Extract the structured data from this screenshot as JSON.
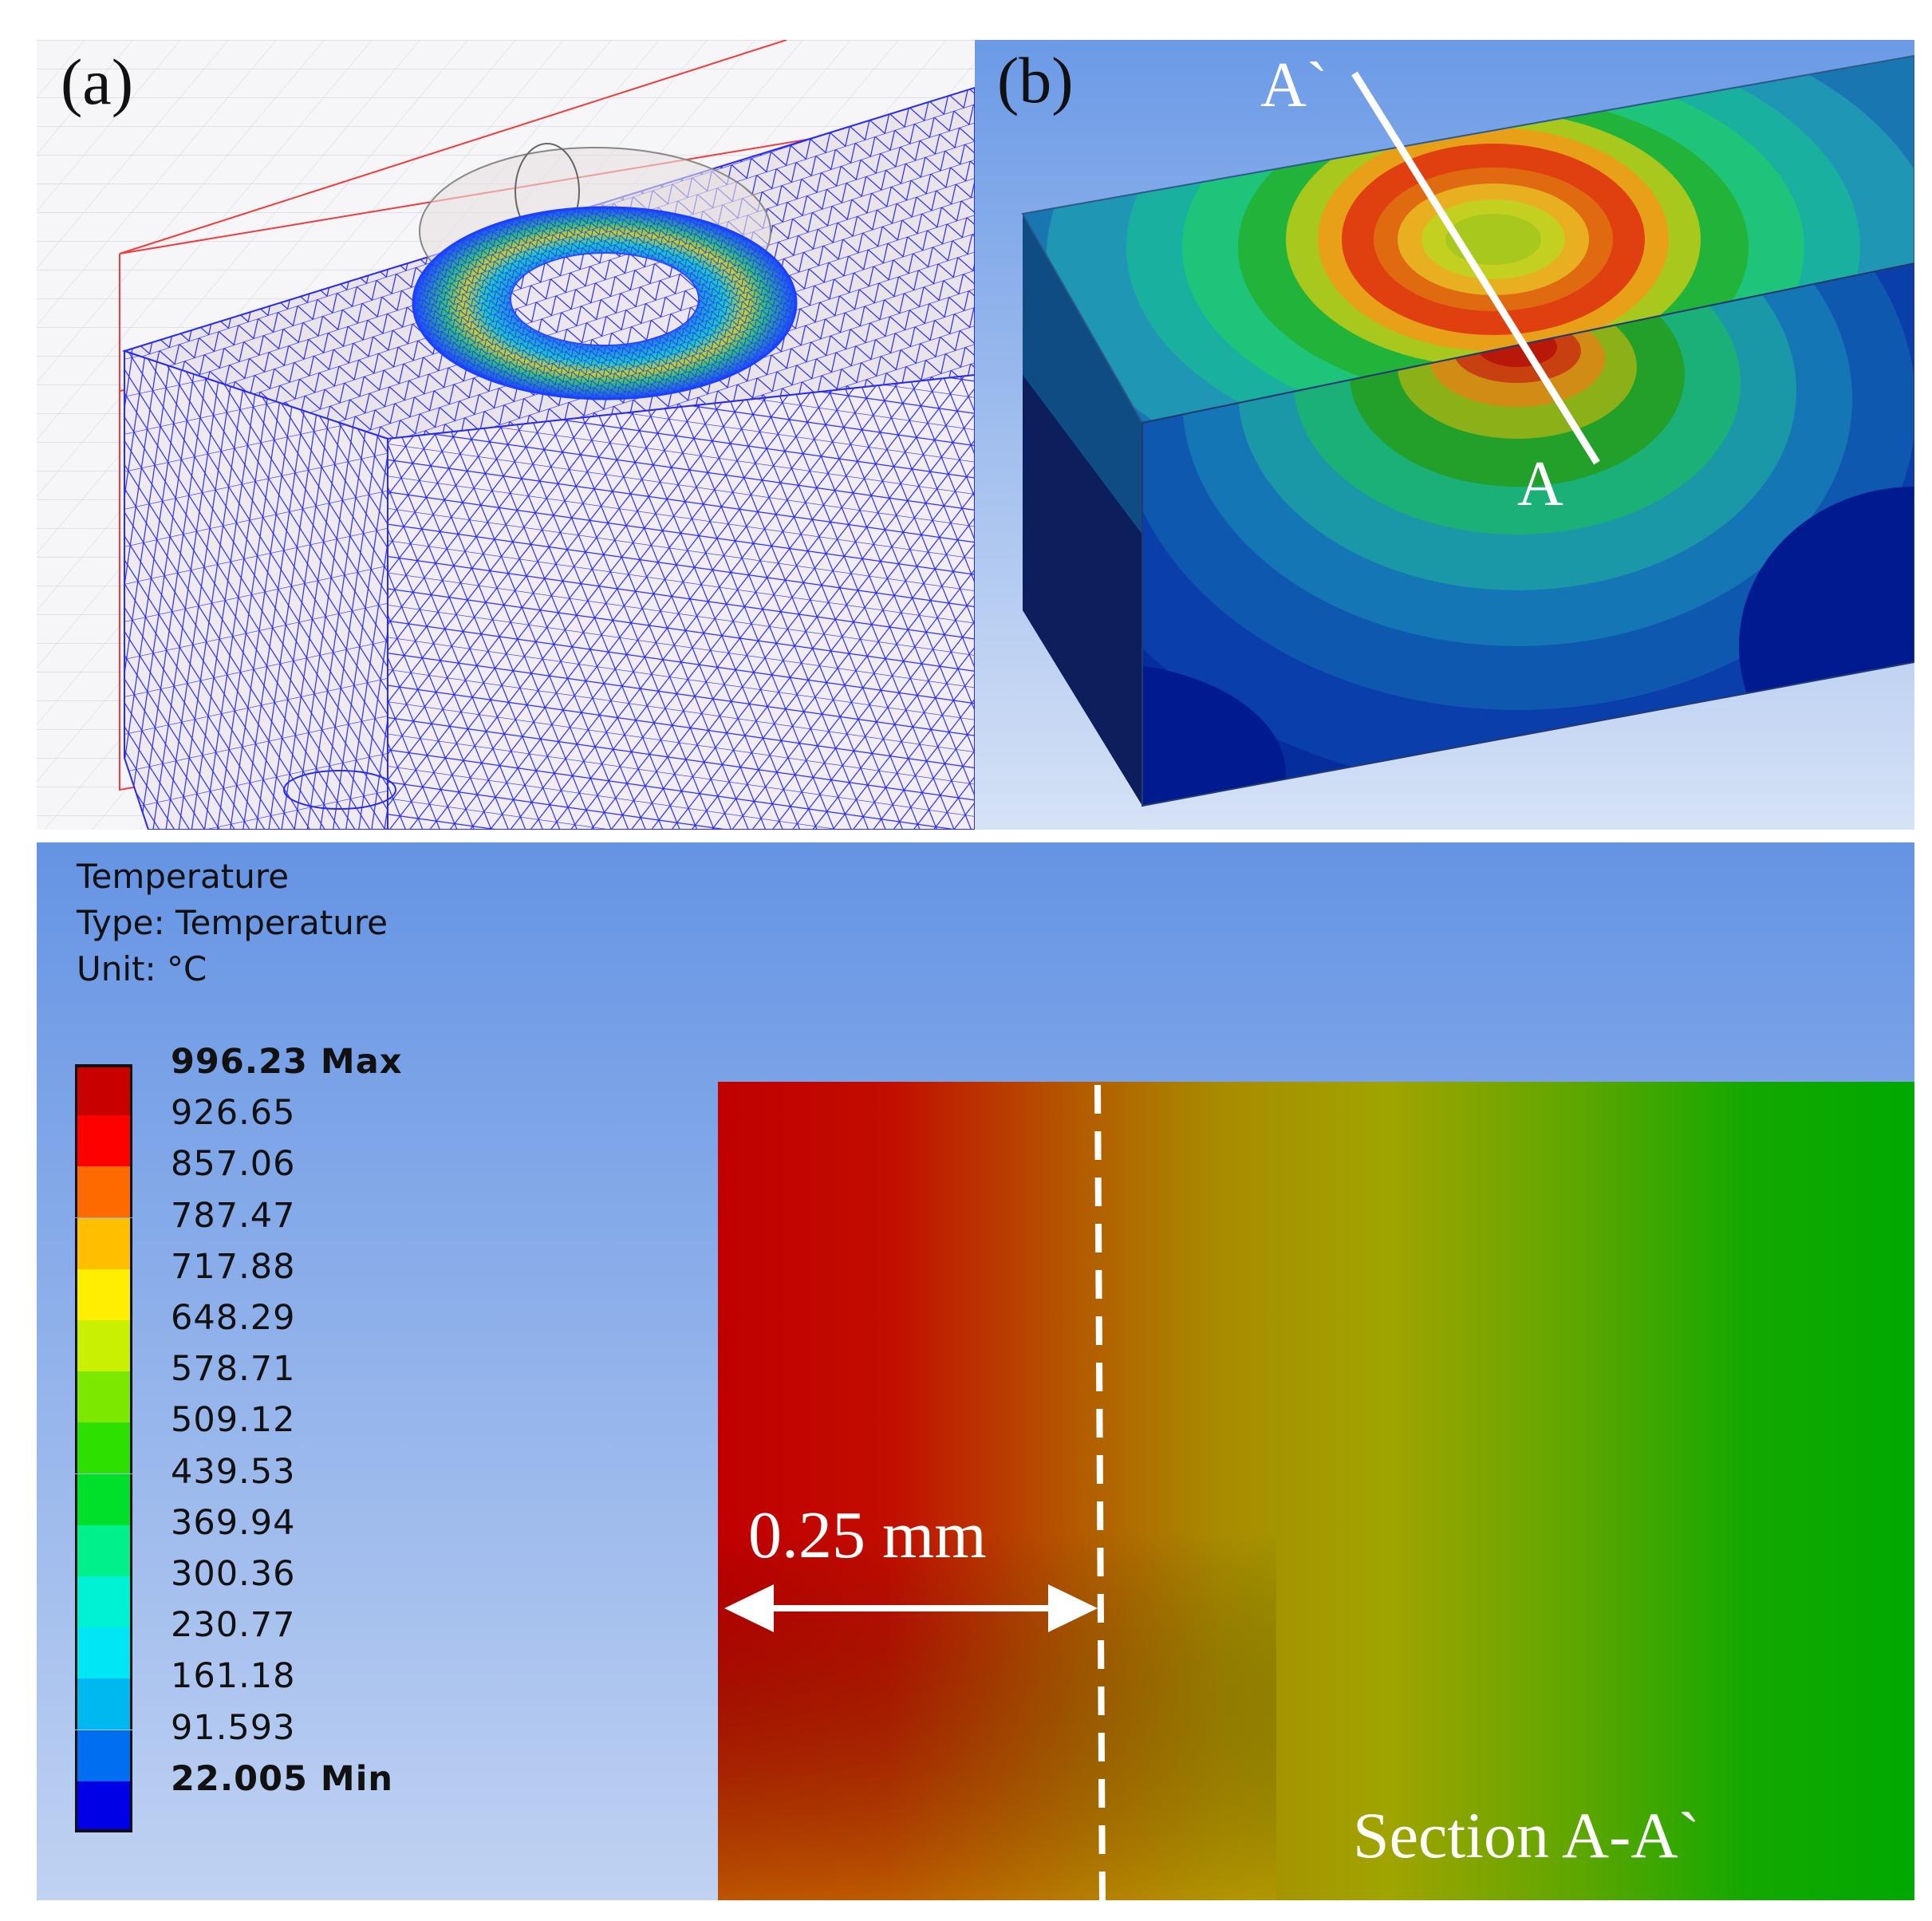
{
  "panel_a": {
    "label": "(a)"
  },
  "panel_b": {
    "label": "(b)",
    "section_start_label": "A`",
    "section_end_label": "A"
  },
  "legend": {
    "title": "Temperature",
    "type_line": "Type: Temperature",
    "unit_line": "Unit: °C",
    "entries": [
      {
        "value": "996.23 Max",
        "color": "#c80000",
        "bold": true
      },
      {
        "value": "926.65",
        "color": "#ff0000"
      },
      {
        "value": "857.06",
        "color": "#ff6a00"
      },
      {
        "value": "787.47",
        "color": "#ffbf00"
      },
      {
        "value": "717.88",
        "color": "#ffee00"
      },
      {
        "value": "648.29",
        "color": "#c8f000"
      },
      {
        "value": "578.71",
        "color": "#7ce800"
      },
      {
        "value": "509.12",
        "color": "#2ee000"
      },
      {
        "value": "439.53",
        "color": "#00e02a"
      },
      {
        "value": "369.94",
        "color": "#00f08c"
      },
      {
        "value": "300.36",
        "color": "#00f2d4"
      },
      {
        "value": "230.77",
        "color": "#00e6f5"
      },
      {
        "value": "161.18",
        "color": "#00b8f0"
      },
      {
        "value": "91.593",
        "color": "#006ef0"
      },
      {
        "value": "22.005 Min",
        "color": "#0000e6",
        "bold": true
      }
    ]
  },
  "section": {
    "dimension_label": "0.25 mm",
    "caption": "Section A-A`"
  }
}
